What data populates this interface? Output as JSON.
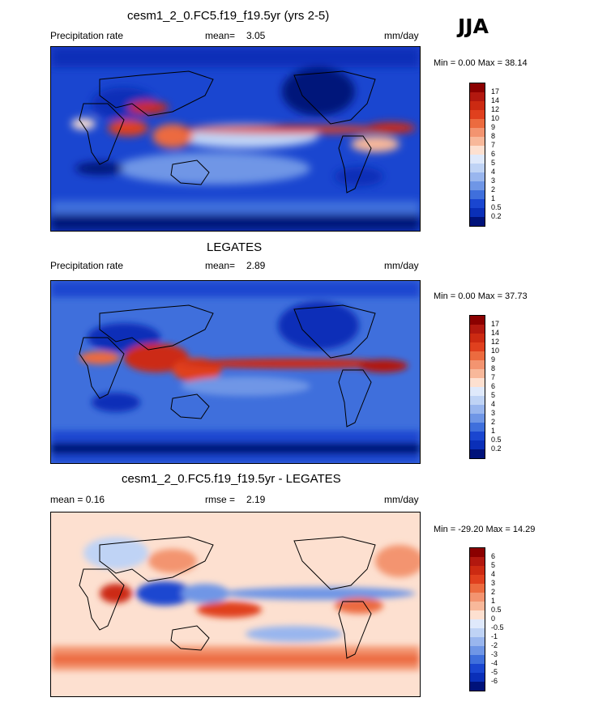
{
  "season": "JJA",
  "panels": [
    {
      "title": "cesm1_2_0.FC5.f19_f19.5yr (yrs 2-5)",
      "left_label": "Precipitation rate",
      "stat_label": "mean=",
      "stat_value": "3.05",
      "units": "mm/day",
      "minmax": "Min =   0.00 Max =  38.14"
    },
    {
      "title": "LEGATES",
      "left_label": "Precipitation rate",
      "stat_label": "mean=",
      "stat_value": "2.89",
      "units": "mm/day",
      "minmax": "Min =   0.00 Max =  37.73"
    },
    {
      "title": "cesm1_2_0.FC5.f19_f19.5yr - LEGATES",
      "left_label": "mean =   0.16",
      "stat_label": "rmse =",
      "stat_value": "2.19",
      "units": "mm/day",
      "minmax": "Min = -29.20 Max =  14.29"
    }
  ],
  "colorbars": {
    "precip": {
      "labels": [
        "17",
        "14",
        "12",
        "10",
        "9",
        "8",
        "7",
        "6",
        "5",
        "4",
        "3",
        "2",
        "1",
        "0.5",
        "0.2"
      ],
      "colors": [
        "#8b0000",
        "#b2180f",
        "#cc2a12",
        "#e0401e",
        "#ec6b3f",
        "#f39470",
        "#f8b89a",
        "#fde0d0",
        "#dfe9fb",
        "#bfd3f5",
        "#99b6ee",
        "#6f96e6",
        "#3f6fdc",
        "#1a46d0",
        "#0a2fb8",
        "#00127a"
      ]
    },
    "diff": {
      "labels": [
        "6",
        "5",
        "4",
        "3",
        "2",
        "1",
        "0.5",
        "0",
        "-0.5",
        "-1",
        "-2",
        "-3",
        "-4",
        "-5",
        "-6"
      ],
      "colors": [
        "#8b0000",
        "#b2180f",
        "#cc2a12",
        "#e0401e",
        "#ec6b3f",
        "#f39470",
        "#f8b89a",
        "#fde0d0",
        "#dfe9fb",
        "#bfd3f5",
        "#99b6ee",
        "#6f96e6",
        "#3f6fdc",
        "#1a46d0",
        "#0a2fb8",
        "#00127a"
      ]
    }
  }
}
